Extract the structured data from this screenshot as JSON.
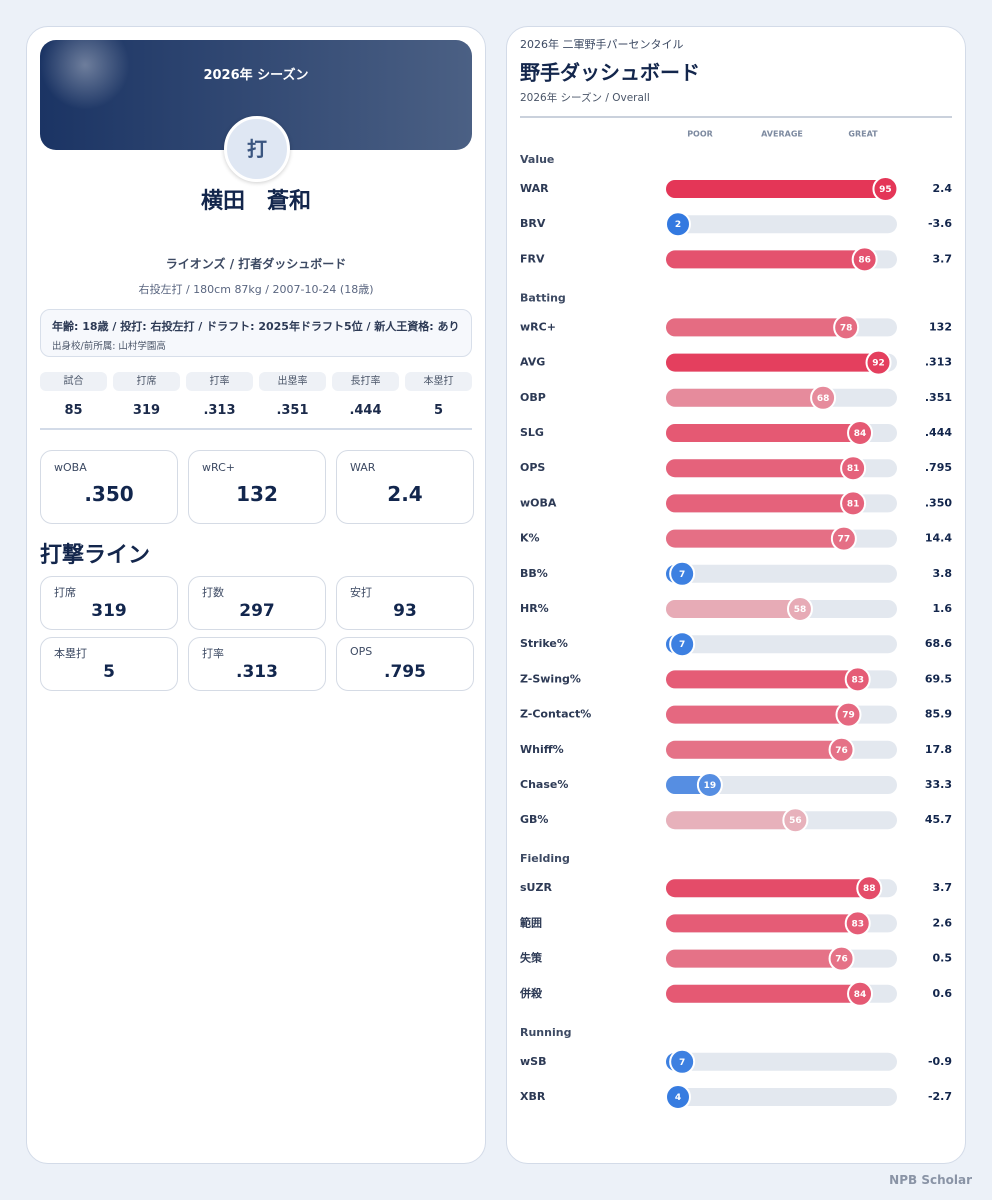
{
  "profile": {
    "season_banner": "2026年 シーズン",
    "icon": "打",
    "name": "横田　蒼和",
    "team_line": "ライオンズ / 打者ダッシュボード",
    "bio_line": "右投左打 / 180cm 87kg / 2007-10-24 (18歳)",
    "info": "年齢: 18歳 / 投打: 右投左打 / ドラフト: 2025年ドラフト5位 / 新人王資格: あり",
    "school": "出身校/前所属: 山村学園高",
    "stats": {
      "headers": [
        "試合",
        "打席",
        "打率",
        "出塁率",
        "長打率",
        "本塁打"
      ],
      "values": [
        "85",
        "319",
        ".313",
        ".351",
        ".444",
        "5"
      ]
    },
    "key_cards": [
      {
        "label": "wOBA",
        "value": ".350"
      },
      {
        "label": "wRC+",
        "value": "132"
      },
      {
        "label": "WAR",
        "value": "2.4"
      }
    ],
    "section_title": "打撃ライン",
    "line_cards": [
      {
        "label": "打席",
        "value": "319"
      },
      {
        "label": "打数",
        "value": "297"
      },
      {
        "label": "安打",
        "value": "93"
      },
      {
        "label": "本塁打",
        "value": "5"
      },
      {
        "label": "打率",
        "value": ".313"
      },
      {
        "label": "OPS",
        "value": ".795"
      }
    ]
  },
  "percentiles": {
    "eyebrow": "2026年 二軍野手パーセンタイル",
    "title": "野手ダッシュボード",
    "subtitle": "2026年 シーズン / Overall",
    "scale_labels": [
      "POOR",
      "AVERAGE",
      "GREAT"
    ],
    "groups": [
      {
        "name": "Value",
        "rows": [
          {
            "label": "WAR",
            "percentile": 95,
            "value": "2.4"
          },
          {
            "label": "BRV",
            "percentile": 2,
            "value": "-3.6"
          },
          {
            "label": "FRV",
            "percentile": 86,
            "value": "3.7"
          }
        ]
      },
      {
        "name": "Batting",
        "rows": [
          {
            "label": "wRC+",
            "percentile": 78,
            "value": "132"
          },
          {
            "label": "AVG",
            "percentile": 92,
            "value": ".313"
          },
          {
            "label": "OBP",
            "percentile": 68,
            "value": ".351"
          },
          {
            "label": "SLG",
            "percentile": 84,
            "value": ".444"
          },
          {
            "label": "OPS",
            "percentile": 81,
            "value": ".795"
          },
          {
            "label": "wOBA",
            "percentile": 81,
            "value": ".350"
          },
          {
            "label": "K%",
            "percentile": 77,
            "value": "14.4"
          },
          {
            "label": "BB%",
            "percentile": 7,
            "value": "3.8"
          },
          {
            "label": "HR%",
            "percentile": 58,
            "value": "1.6"
          },
          {
            "label": "Strike%",
            "percentile": 7,
            "value": "68.6"
          },
          {
            "label": "Z-Swing%",
            "percentile": 83,
            "value": "69.5"
          },
          {
            "label": "Z-Contact%",
            "percentile": 79,
            "value": "85.9"
          },
          {
            "label": "Whiff%",
            "percentile": 76,
            "value": "17.8"
          },
          {
            "label": "Chase%",
            "percentile": 19,
            "value": "33.3"
          },
          {
            "label": "GB%",
            "percentile": 56,
            "value": "45.7"
          }
        ]
      },
      {
        "name": "Fielding",
        "rows": [
          {
            "label": "sUZR",
            "percentile": 88,
            "value": "3.7"
          },
          {
            "label": "範囲",
            "percentile": 83,
            "value": "2.6"
          },
          {
            "label": "失策",
            "percentile": 76,
            "value": "0.5"
          },
          {
            "label": "併殺",
            "percentile": 84,
            "value": "0.6"
          }
        ]
      },
      {
        "name": "Running",
        "rows": [
          {
            "label": "wSB",
            "percentile": 7,
            "value": "-0.9"
          },
          {
            "label": "XBR",
            "percentile": 4,
            "value": "-2.7"
          }
        ]
      }
    ]
  },
  "footer": "NPB Scholar"
}
